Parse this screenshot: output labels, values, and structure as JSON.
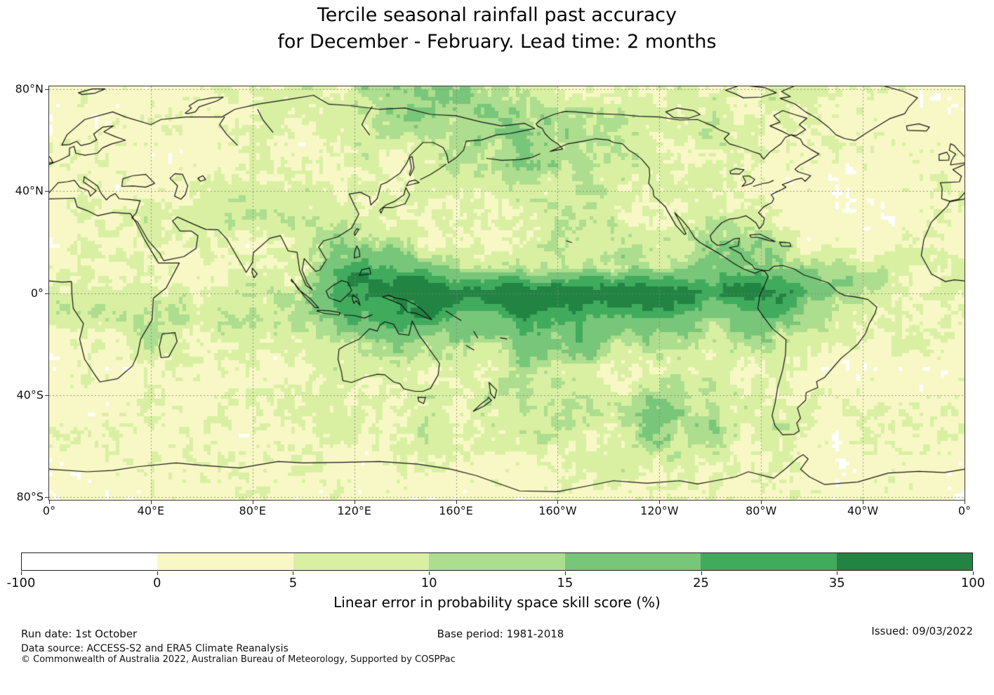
{
  "header": {
    "title_line1": "Tercile seasonal rainfall past accuracy",
    "title_line2": "for December - February. Lead time: 2 months"
  },
  "axes": {
    "lat_ticks": [
      {
        "label": "80°N",
        "lat": 80
      },
      {
        "label": "40°N",
        "lat": 40
      },
      {
        "label": "0°",
        "lat": 0
      },
      {
        "label": "40°S",
        "lat": -40
      },
      {
        "label": "80°S",
        "lat": -80
      }
    ],
    "lon_ticks": [
      {
        "label": "0°",
        "lon": 0
      },
      {
        "label": "40°E",
        "lon": 40
      },
      {
        "label": "80°E",
        "lon": 80
      },
      {
        "label": "120°E",
        "lon": 120
      },
      {
        "label": "160°E",
        "lon": 160
      },
      {
        "label": "160°W",
        "lon": 200
      },
      {
        "label": "120°W",
        "lon": 240
      },
      {
        "label": "80°W",
        "lon": 280
      },
      {
        "label": "40°W",
        "lon": 320
      },
      {
        "label": "0°",
        "lon": 360
      }
    ]
  },
  "colorbar": {
    "label": "Linear error in probability space skill score (%)",
    "bounds": [
      -100,
      0,
      5,
      10,
      15,
      25,
      35,
      100
    ],
    "tick_labels": [
      "-100",
      "0",
      "5",
      "10",
      "15",
      "25",
      "35",
      "100"
    ],
    "colors": [
      "#ffffff",
      "#f8f8c6",
      "#d9f0a3",
      "#addd8e",
      "#78c679",
      "#41ab5d",
      "#228443"
    ]
  },
  "footer": {
    "run_date": "Run date: 1st October",
    "base_period": "Base period: 1981-2018",
    "issued": "Issued: 09/03/2022",
    "data_source": "Data source: ACCESS-S2 and ERA5 Climate Reanalysis",
    "copyright": "© Commonwealth of Australia 2022, Australian Bureau of Meteorology, Supported by COSPPac"
  },
  "chart_data": {
    "type": "heatmap",
    "title": "Tercile seasonal rainfall past accuracy for December - February. Lead time: 2 months",
    "xlabel": "longitude",
    "ylabel": "latitude",
    "units": "%",
    "legend_label": "Linear error in probability space skill score (%)",
    "projection": "equirectangular, Pacific-centered (0°E left edge to 0°E right edge)",
    "lon_range": [
      0,
      360
    ],
    "lat_range": [
      -81,
      81
    ],
    "grid_on": true,
    "colorbar_ticks": [
      -100,
      0,
      5,
      10,
      15,
      25,
      35,
      100
    ],
    "grid": {
      "lons": [
        0,
        20,
        40,
        60,
        80,
        100,
        120,
        140,
        160,
        180,
        200,
        220,
        240,
        260,
        280,
        300,
        320,
        340,
        360
      ],
      "lats": [
        80,
        70,
        60,
        50,
        40,
        30,
        20,
        10,
        0,
        -10,
        -20,
        -30,
        -40,
        -50,
        -60,
        -70,
        -80
      ],
      "values": [
        [
          3,
          3,
          4,
          4,
          5,
          6,
          8,
          12,
          13,
          11,
          8,
          6,
          5,
          6,
          6,
          5,
          4,
          3,
          3
        ],
        [
          3,
          3,
          4,
          4,
          5,
          6,
          9,
          13,
          14,
          12,
          10,
          8,
          6,
          7,
          7,
          5,
          3,
          3,
          3
        ],
        [
          3,
          4,
          4,
          3,
          4,
          5,
          6,
          8,
          12,
          14,
          11,
          7,
          6,
          8,
          6,
          4,
          3,
          3,
          3
        ],
        [
          3,
          4,
          3,
          3,
          4,
          5,
          5,
          6,
          9,
          13,
          12,
          8,
          5,
          5,
          4,
          3,
          3,
          3,
          3
        ],
        [
          4,
          4,
          4,
          5,
          6,
          6,
          5,
          5,
          6,
          8,
          10,
          8,
          5,
          4,
          3,
          3,
          2,
          3,
          4
        ],
        [
          4,
          4,
          5,
          6,
          7,
          7,
          6,
          5,
          5,
          6,
          8,
          8,
          6,
          8,
          6,
          3,
          3,
          4,
          4
        ],
        [
          3,
          4,
          5,
          5,
          6,
          8,
          12,
          8,
          5,
          6,
          8,
          10,
          10,
          14,
          12,
          4,
          3,
          4,
          3
        ],
        [
          4,
          5,
          6,
          4,
          6,
          10,
          22,
          18,
          12,
          12,
          14,
          12,
          12,
          20,
          18,
          10,
          8,
          9,
          7
        ],
        [
          6,
          8,
          8,
          5,
          10,
          14,
          30,
          38,
          44,
          48,
          48,
          45,
          40,
          36,
          40,
          20,
          10,
          8,
          7
        ],
        [
          5,
          8,
          10,
          8,
          11,
          14,
          22,
          28,
          30,
          26,
          28,
          25,
          18,
          15,
          22,
          12,
          6,
          5,
          5
        ],
        [
          4,
          6,
          8,
          6,
          8,
          8,
          10,
          14,
          18,
          14,
          18,
          16,
          10,
          8,
          12,
          6,
          4,
          4,
          4
        ],
        [
          3,
          4,
          5,
          4,
          5,
          6,
          6,
          6,
          10,
          10,
          8,
          10,
          8,
          6,
          6,
          4,
          3,
          3,
          3
        ],
        [
          3,
          4,
          4,
          3,
          4,
          5,
          5,
          6,
          8,
          10,
          8,
          10,
          12,
          10,
          8,
          5,
          4,
          3,
          3
        ],
        [
          4,
          4,
          5,
          4,
          5,
          5,
          6,
          6,
          8,
          6,
          8,
          10,
          14,
          12,
          8,
          6,
          5,
          4,
          4
        ],
        [
          4,
          4,
          4,
          4,
          5,
          5,
          5,
          6,
          6,
          6,
          6,
          8,
          12,
          10,
          6,
          5,
          4,
          4,
          4
        ],
        [
          3,
          3,
          3,
          3,
          4,
          4,
          4,
          4,
          4,
          4,
          5,
          5,
          6,
          6,
          5,
          4,
          3,
          3,
          3
        ],
        [
          3,
          3,
          3,
          3,
          3,
          3,
          3,
          3,
          3,
          3,
          3,
          3,
          4,
          4,
          4,
          3,
          3,
          3,
          3
        ]
      ]
    }
  }
}
